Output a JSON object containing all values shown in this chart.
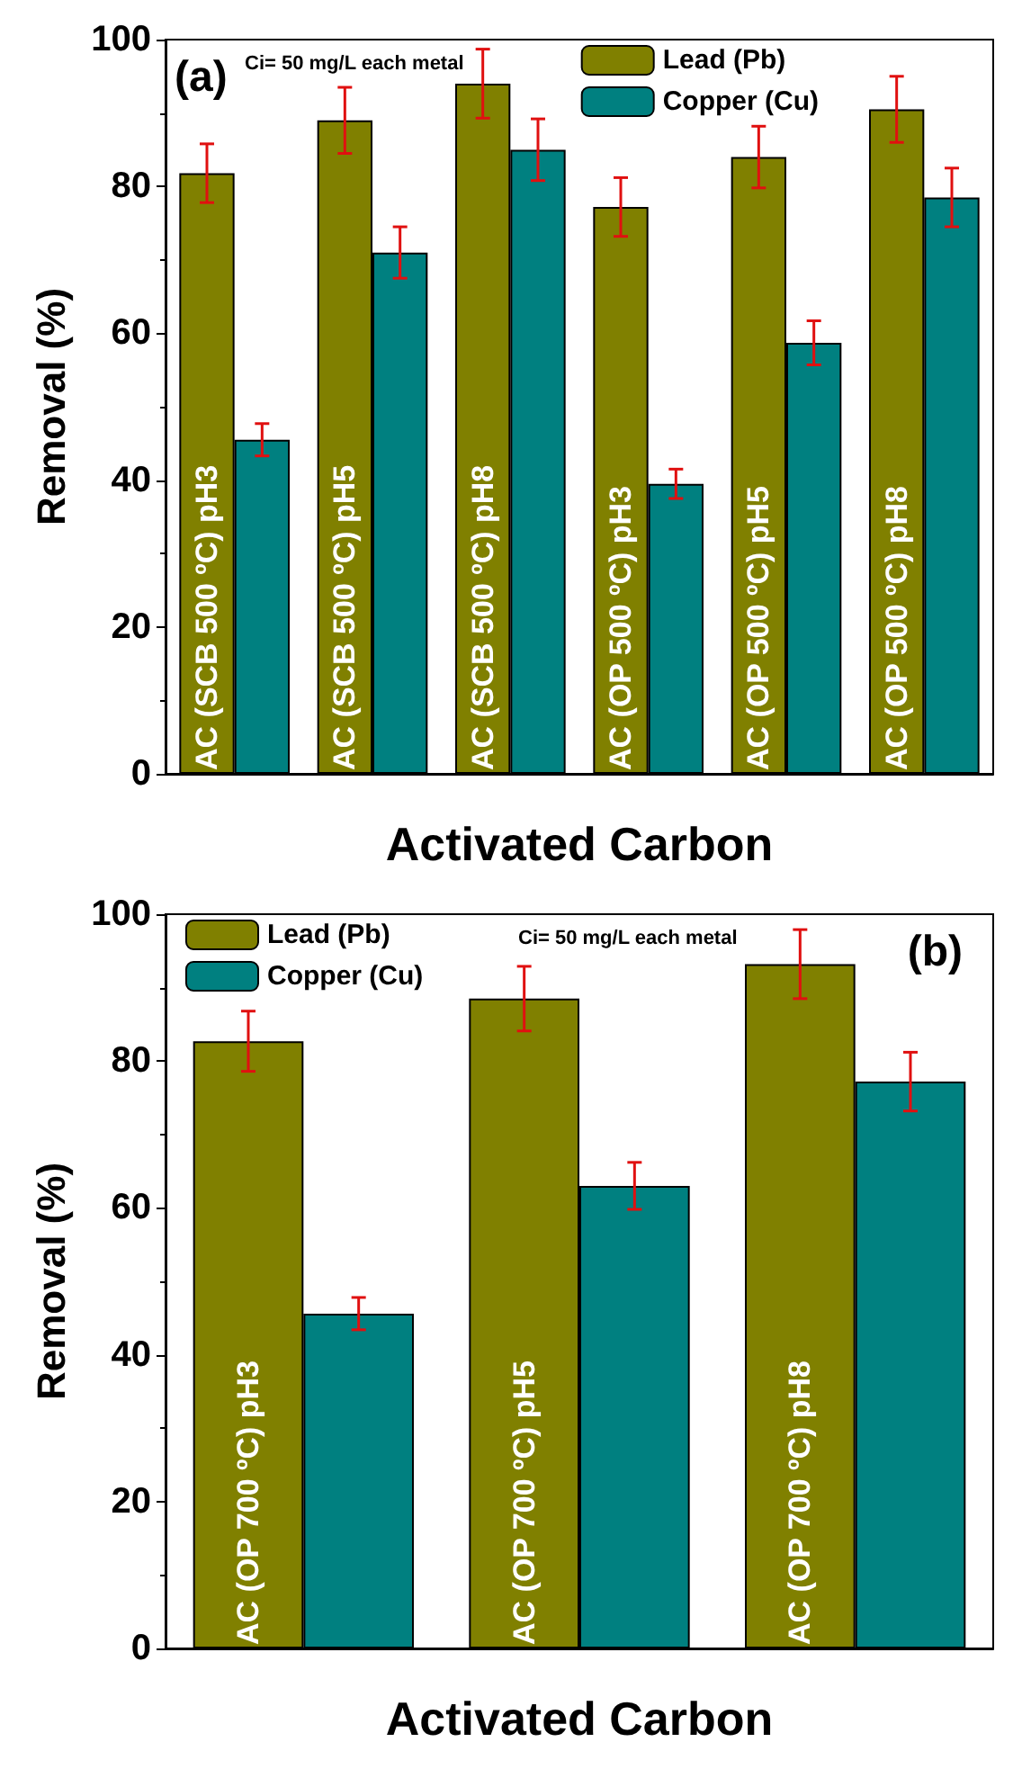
{
  "chart_data": [
    {
      "type": "bar",
      "title": "(a)",
      "annotations": [
        "Ci= 50 mg/L each metal"
      ],
      "xlabel": "Activated Carbon",
      "ylabel": "Removal (%)",
      "categories": [
        "AC (SCB 500 ºC) pH3",
        "AC (SCB 500 ºC) pH5",
        "AC (SCB 500 ºC) pH8",
        "AC (OP 500 ºC) pH3",
        "AC (OP 500 ºC) pH5",
        "AC (OP 500 ºC) pH8"
      ],
      "series": [
        {
          "name": "Lead (Pb)",
          "color": "#808000",
          "values": [
            81.8,
            89,
            94,
            77.2,
            84,
            90.5
          ],
          "errors": [
            4,
            4.5,
            4.7,
            4,
            4.2,
            4.5
          ]
        },
        {
          "name": "Copper (Cu)",
          "color": "#008080",
          "values": [
            45.5,
            71,
            85,
            39.5,
            58.7,
            78.5
          ],
          "errors": [
            2.2,
            3.5,
            4.2,
            2,
            3,
            4
          ]
        }
      ],
      "ylim": [
        0,
        100
      ],
      "yticks": [
        0,
        20,
        40,
        60,
        80,
        100
      ],
      "legend": "top right"
    },
    {
      "type": "bar",
      "title": "(b)",
      "annotations": [
        "Ci= 50 mg/L each metal"
      ],
      "xlabel": "Activated Carbon",
      "ylabel": "Removal (%)",
      "categories": [
        "AC (OP 700 ºC) pH3",
        "AC (OP 700 ºC) pH5",
        "AC (OP 700 ºC) pH8"
      ],
      "series": [
        {
          "name": "Lead (Pb)",
          "color": "#808000",
          "values": [
            82.7,
            88.5,
            93.2
          ],
          "errors": [
            4.1,
            4.4,
            4.7
          ]
        },
        {
          "name": "Copper (Cu)",
          "color": "#008080",
          "values": [
            45.6,
            63,
            77.2
          ],
          "errors": [
            2.2,
            3.2,
            4
          ]
        }
      ],
      "ylim": [
        0,
        100
      ],
      "yticks": [
        0,
        20,
        40,
        60,
        80,
        100
      ],
      "legend": "top left"
    }
  ]
}
